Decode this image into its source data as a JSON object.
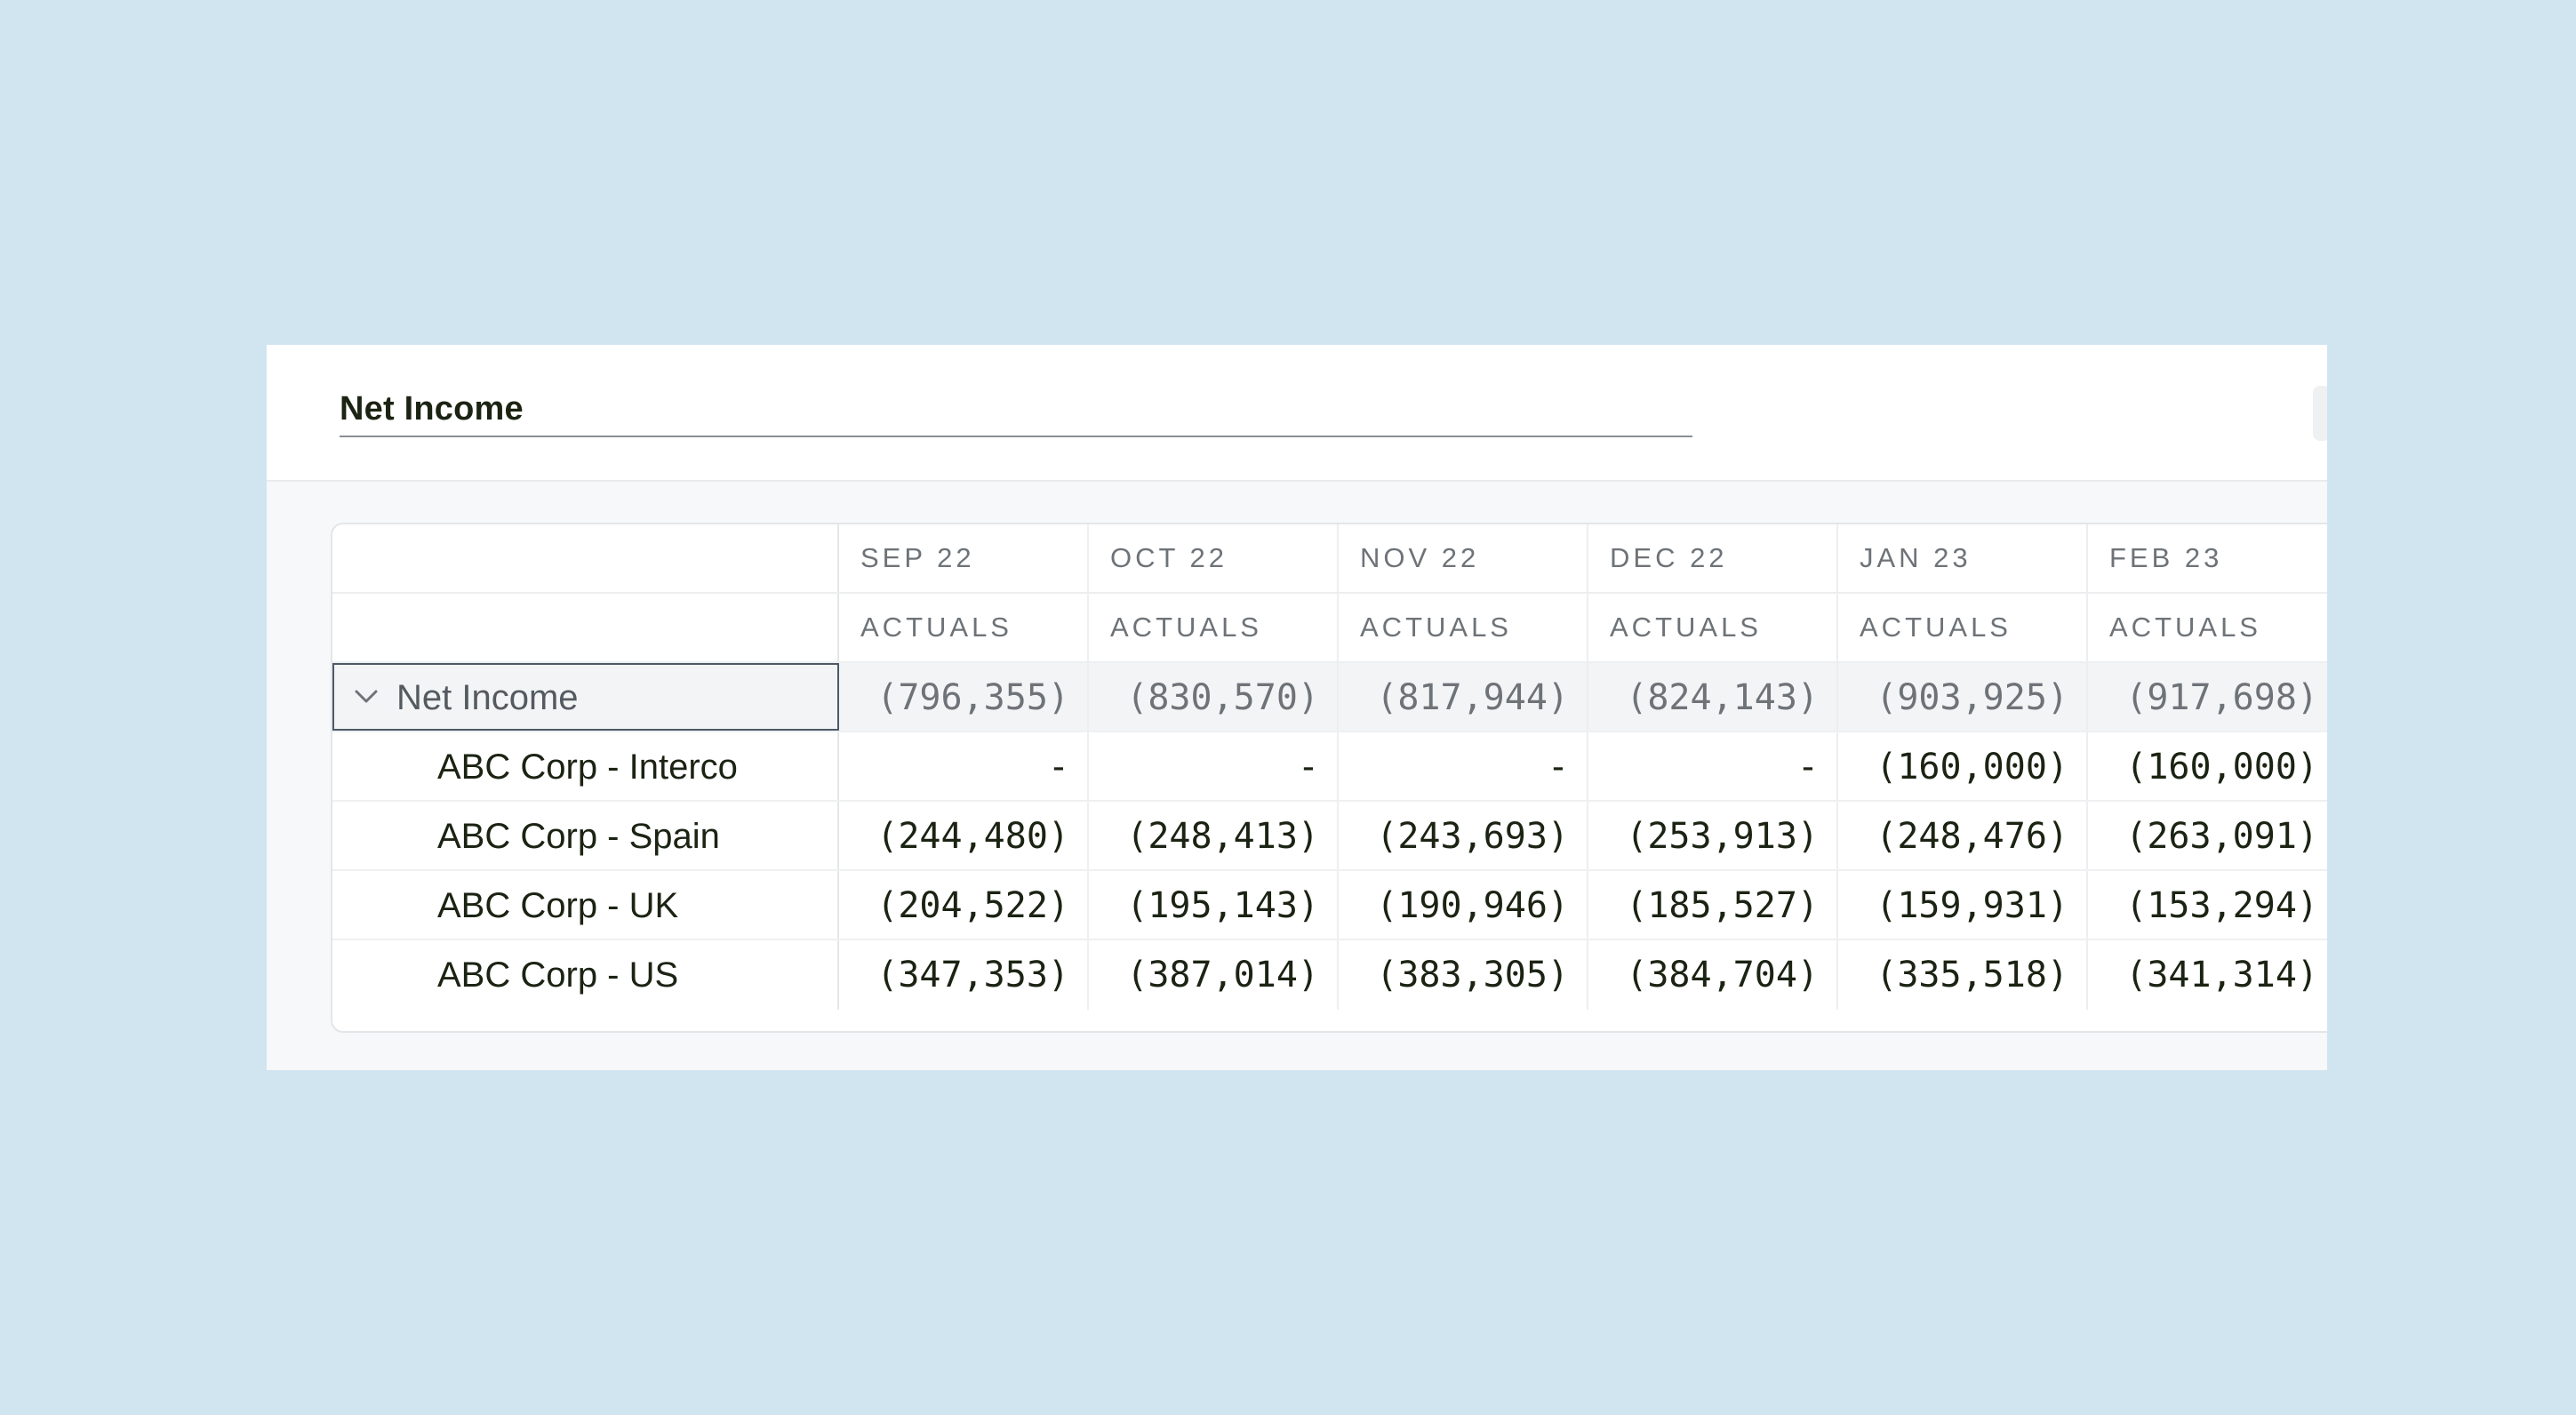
{
  "title": "Net Income",
  "columns": [
    {
      "month": "SEP 22",
      "type": "ACTUALS"
    },
    {
      "month": "OCT 22",
      "type": "ACTUALS"
    },
    {
      "month": "NOV 22",
      "type": "ACTUALS"
    },
    {
      "month": "DEC 22",
      "type": "ACTUALS"
    },
    {
      "month": "JAN 23",
      "type": "ACTUALS"
    },
    {
      "month": "FEB 23",
      "type": "ACTUALS"
    }
  ],
  "total_row": {
    "label": "Net Income",
    "values": [
      "(796,355)",
      "(830,570)",
      "(817,944)",
      "(824,143)",
      "(903,925)",
      "(917,698)"
    ]
  },
  "rows": [
    {
      "label": "ABC Corp - Interco",
      "values": [
        "-",
        "-",
        "-",
        "-",
        "(160,000)",
        "(160,000)"
      ]
    },
    {
      "label": "ABC Corp - Spain",
      "values": [
        "(244,480)",
        "(248,413)",
        "(243,693)",
        "(253,913)",
        "(248,476)",
        "(263,091)"
      ]
    },
    {
      "label": "ABC Corp - UK",
      "values": [
        "(204,522)",
        "(195,143)",
        "(190,946)",
        "(185,527)",
        "(159,931)",
        "(153,294)"
      ]
    },
    {
      "label": "ABC Corp - US",
      "values": [
        "(347,353)",
        "(387,014)",
        "(383,305)",
        "(384,704)",
        "(335,518)",
        "(341,314)"
      ]
    }
  ],
  "icons": {
    "expand": "chevron-down-icon"
  },
  "colors": {
    "background": "#d1e5f1",
    "text": "#1b2313",
    "muted": "#6e7378",
    "total_row_bg": "#f3f4f6"
  }
}
